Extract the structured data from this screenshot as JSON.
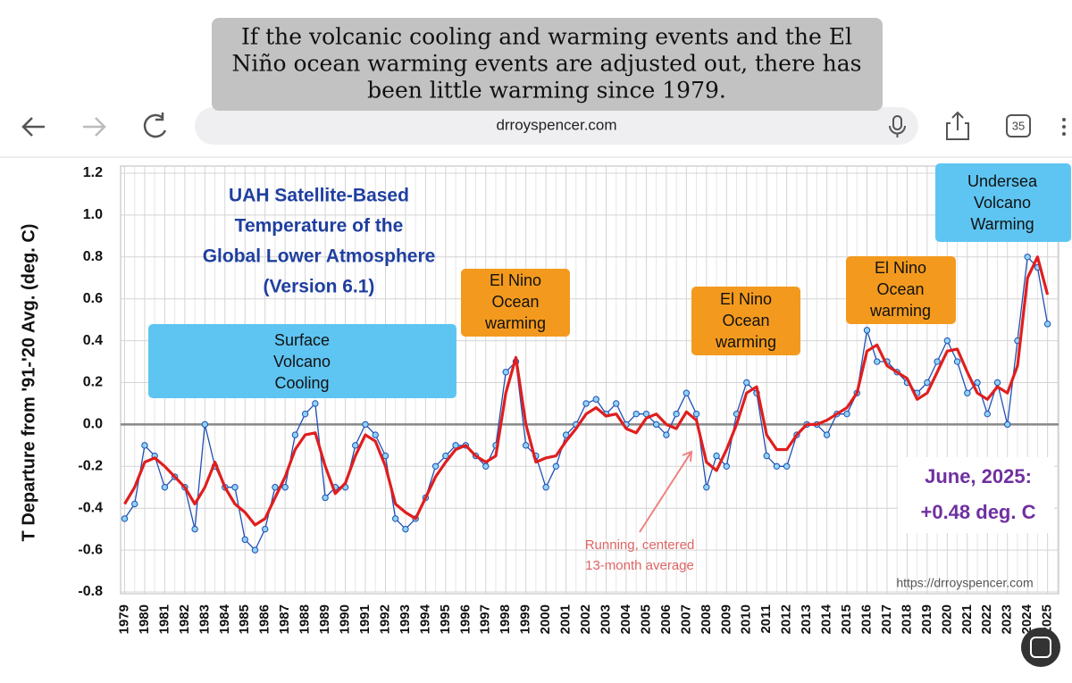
{
  "caption": {
    "lines": [
      "If the volcanic cooling and warming events and the El",
      "Niño ocean warming events are adjusted out, there has",
      "been little warming since 1979."
    ]
  },
  "browser": {
    "url": "drroyspencer.com",
    "tab_count": "35"
  },
  "chart_data": {
    "type": "line",
    "title_lines": [
      "UAH Satellite-Based",
      "Temperature of the",
      "Global Lower Atmosphere",
      "(Version 6.1)"
    ],
    "y_label": "T Departure from '91-'20 Avg. (deg. C)",
    "ylim": [
      -0.8,
      1.2
    ],
    "yticks": [
      -0.8,
      -0.6,
      -0.4,
      -0.2,
      {
        "value": 0,
        "label": "0.0"
      },
      0.2,
      0.4,
      0.6,
      0.8,
      {
        "value": 1,
        "label": "1.0"
      },
      1.2
    ],
    "xlim": [
      1978.8,
      2025.55
    ],
    "xticks": [
      1979,
      1980,
      1981,
      1982,
      1983,
      1984,
      1985,
      1986,
      1987,
      1988,
      1989,
      1990,
      1991,
      1992,
      1993,
      1994,
      1995,
      1996,
      1997,
      1998,
      1999,
      2000,
      2001,
      2002,
      2003,
      2004,
      2005,
      2006,
      2007,
      2008,
      2009,
      2010,
      2011,
      2012,
      2013,
      2014,
      2015,
      2016,
      2017,
      2018,
      2019,
      2020,
      2021,
      2022,
      2023,
      2024,
      2025
    ],
    "grid": true,
    "x": [
      1979,
      1979.5,
      1980,
      1980.5,
      1981,
      1981.5,
      1982,
      1982.5,
      1983,
      1983.5,
      1984,
      1984.5,
      1985,
      1985.5,
      1986,
      1986.5,
      1987,
      1987.5,
      1988,
      1988.5,
      1989,
      1989.5,
      1990,
      1990.5,
      1991,
      1991.5,
      1992,
      1992.5,
      1993,
      1993.5,
      1994,
      1994.5,
      1995,
      1995.5,
      1996,
      1996.5,
      1997,
      1997.5,
      1998,
      1998.5,
      1999,
      1999.5,
      2000,
      2000.5,
      2001,
      2001.5,
      2002,
      2002.5,
      2003,
      2003.5,
      2004,
      2004.5,
      2005,
      2005.5,
      2006,
      2006.5,
      2007,
      2007.5,
      2008,
      2008.5,
      2009,
      2009.5,
      2010,
      2010.5,
      2011,
      2011.5,
      2012,
      2012.5,
      2013,
      2013.5,
      2014,
      2014.5,
      2015,
      2015.5,
      2016,
      2016.5,
      2017,
      2017.5,
      2018,
      2018.5,
      2019,
      2019.5,
      2020,
      2020.5,
      2021,
      2021.5,
      2022,
      2022.5,
      2023,
      2023.5,
      2024,
      2024.5,
      2025
    ],
    "series": [
      {
        "color": "#1f4fb4",
        "markers": true,
        "values": [
          -0.45,
          -0.38,
          -0.1,
          -0.15,
          -0.3,
          -0.25,
          -0.3,
          -0.5,
          0.0,
          -0.2,
          -0.3,
          -0.3,
          -0.55,
          -0.6,
          -0.5,
          -0.3,
          -0.3,
          -0.05,
          0.05,
          0.1,
          -0.35,
          -0.3,
          -0.3,
          -0.1,
          0.0,
          -0.05,
          -0.15,
          -0.45,
          -0.5,
          -0.45,
          -0.35,
          -0.2,
          -0.15,
          -0.1,
          -0.1,
          -0.15,
          -0.2,
          -0.1,
          0.25,
          0.3,
          -0.1,
          -0.15,
          -0.3,
          -0.2,
          -0.05,
          0.0,
          0.1,
          0.12,
          0.05,
          0.1,
          0.0,
          0.05,
          0.05,
          0.0,
          -0.05,
          0.05,
          0.15,
          0.05,
          -0.3,
          -0.15,
          -0.2,
          0.05,
          0.2,
          0.15,
          -0.15,
          -0.2,
          -0.2,
          -0.05,
          0.0,
          0.0,
          -0.05,
          0.05,
          0.05,
          0.15,
          0.45,
          0.3,
          0.3,
          0.25,
          0.2,
          0.15,
          0.2,
          0.3,
          0.4,
          0.3,
          0.15,
          0.2,
          0.05,
          0.2,
          0.0,
          0.4,
          0.8,
          0.75,
          0.48
        ]
      },
      {
        "color": "#e01e1e",
        "markers": false,
        "values": [
          -0.38,
          -0.3,
          -0.18,
          -0.16,
          -0.2,
          -0.25,
          -0.3,
          -0.38,
          -0.3,
          -0.18,
          -0.3,
          -0.38,
          -0.42,
          -0.48,
          -0.45,
          -0.35,
          -0.25,
          -0.12,
          -0.05,
          -0.04,
          -0.2,
          -0.33,
          -0.28,
          -0.15,
          -0.05,
          -0.08,
          -0.2,
          -0.38,
          -0.42,
          -0.45,
          -0.35,
          -0.25,
          -0.18,
          -0.12,
          -0.1,
          -0.15,
          -0.18,
          -0.15,
          0.15,
          0.32,
          0.0,
          -0.18,
          -0.16,
          -0.15,
          -0.08,
          -0.02,
          0.05,
          0.08,
          0.04,
          0.05,
          -0.02,
          -0.04,
          0.03,
          0.05,
          0.0,
          -0.02,
          0.06,
          0.02,
          -0.18,
          -0.22,
          -0.12,
          0.0,
          0.15,
          0.18,
          -0.05,
          -0.12,
          -0.12,
          -0.05,
          0.0,
          0.0,
          0.02,
          0.05,
          0.08,
          0.15,
          0.35,
          0.38,
          0.28,
          0.25,
          0.22,
          0.12,
          0.15,
          0.25,
          0.35,
          0.36,
          0.25,
          0.15,
          0.12,
          0.18,
          0.15,
          0.28,
          0.7,
          0.8,
          0.62
        ]
      }
    ],
    "annotations": [
      {
        "lines": [
          "Surface",
          "Volcano",
          "Cooling"
        ],
        "color": "#5ec5f2"
      },
      {
        "lines": [
          "El Nino",
          "Ocean",
          "warming"
        ],
        "color": "#f39a1e"
      },
      {
        "lines": [
          "El Nino",
          "Ocean",
          "warming"
        ],
        "color": "#f39a1e"
      },
      {
        "lines": [
          "El Nino",
          "Ocean",
          "warming"
        ],
        "color": "#f39a1e"
      },
      {
        "lines": [
          "Undersea",
          "Volcano",
          "Warming"
        ],
        "color": "#5ec5f2"
      }
    ],
    "latest_lines": [
      "June, 2025:",
      "+0.48 deg. C"
    ],
    "running_label_lines": [
      "Running, centered",
      "13-month average"
    ],
    "watermark": "https://drroyspencer.com"
  }
}
